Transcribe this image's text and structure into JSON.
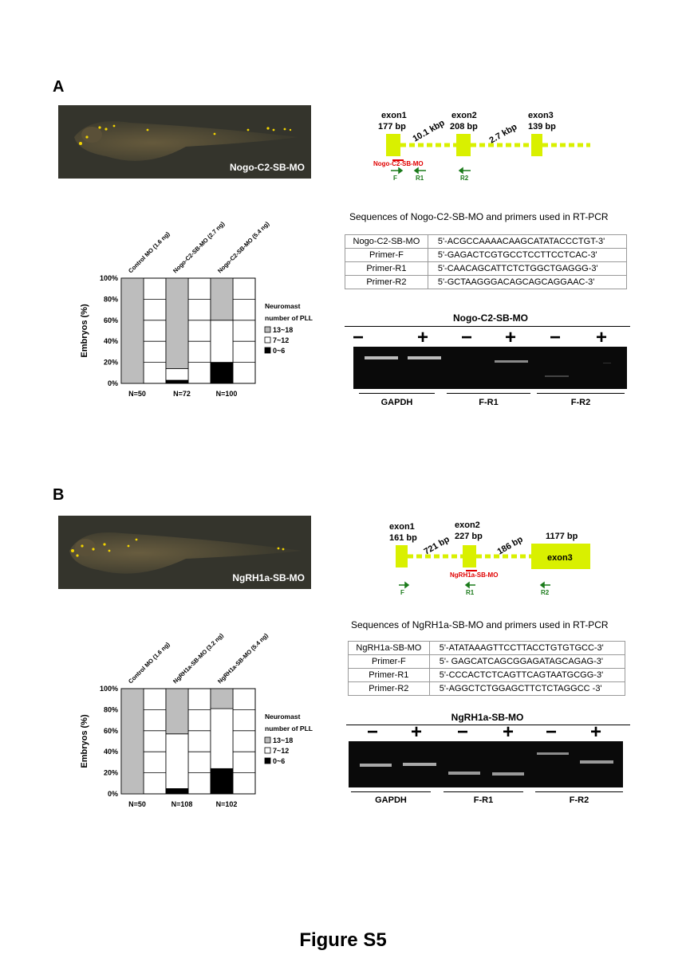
{
  "figure_title": "Figure S5",
  "panels": [
    {
      "letter": "A",
      "fish_label": "Nogo-C2-SB-MO",
      "gene": {
        "exon1": "exon1",
        "exon1_size": "177 bp",
        "exon2": "exon2",
        "exon2_size": "208 bp",
        "exon3": "exon3",
        "exon3_size": "139 bp",
        "intron1": "10.1 kbp",
        "intron2": "2.7 kbp",
        "mo": "Nogo-C2-SB-MO",
        "primer_f": "F",
        "primer_r1": "R1",
        "primer_r2": "R2"
      },
      "seq_title": "Sequences of Nogo-C2-SB-MO and primers used in RT-PCR",
      "seq_rows": [
        {
          "name": "Nogo-C2-SB-MO",
          "seq": "5'-ACGCCAAAACAAGCATATACCCTGT-3'"
        },
        {
          "name": "Primer-F",
          "seq": "5'-GAGACTCGTGCCTCCTTCCTCAC-3'"
        },
        {
          "name": "Primer-R1",
          "seq": "5'-CAACAGCATTCTCTGGCTGAGGG-3'"
        },
        {
          "name": "Primer-R2",
          "seq": "5'-GCTAAGGGACAGCAGCAGGAAC-3'"
        }
      ],
      "gel": {
        "title": "Nogo-C2-SB-MO",
        "signs": [
          "−",
          "+",
          "−",
          "+",
          "−",
          "+"
        ],
        "groups": [
          "GAPDH",
          "F-R1",
          "F-R2"
        ]
      }
    },
    {
      "letter": "B",
      "fish_label": "NgRH1a-SB-MO",
      "gene": {
        "exon1": "exon1",
        "exon1_size": "161 bp",
        "exon2": "exon2",
        "exon2_size": "227 bp",
        "exon3": "exon3",
        "exon3_size": "1177 bp",
        "intron1": "721 bp",
        "intron2": "186 bp",
        "mo": "NgRH1a-SB-MO",
        "primer_f": "F",
        "primer_r1": "R1",
        "primer_r2": "R2"
      },
      "seq_title": "Sequences of NgRH1a-SB-MO and primers used in RT-PCR",
      "seq_rows": [
        {
          "name": "NgRH1a-SB-MO",
          "seq": "5'-ATATAAAGTTCCTTACCTGTGTGCC-3'"
        },
        {
          "name": "Primer-F",
          "seq": "5'- GAGCATCAGCGGAGATAGCAGAG-3'"
        },
        {
          "name": "Primer-R1",
          "seq": "5'-CCCACTCTCAGTTCAGTAATGCGG-3'"
        },
        {
          "name": "Primer-R2",
          "seq": "5'-AGGCTCTGGAGCTTCTCTAGGCC -3'"
        }
      ],
      "gel": {
        "title": "NgRH1a-SB-MO",
        "signs": [
          "−",
          "+",
          "−",
          "+",
          "−",
          "+"
        ],
        "groups": [
          "GAPDH",
          "F-R1",
          "F-R2"
        ]
      }
    }
  ],
  "chart_data": [
    {
      "type": "bar",
      "stacked": true,
      "ylabel": "Embryos (%)",
      "ylim": [
        0,
        100
      ],
      "yticks": [
        "0%",
        "20%",
        "40%",
        "60%",
        "80%",
        "100%"
      ],
      "categories": [
        "Control MO (1.6 ng)",
        "Nogo-C2-SB-MO (2.7 ng)",
        "Nogo-C2-SB-MO (5.4 ng)"
      ],
      "n_labels": [
        "N=50",
        "N=72",
        "N=100"
      ],
      "legend_title": [
        "Neuromast",
        "number of PLL"
      ],
      "series": [
        {
          "name": "0~6",
          "color": "#000000",
          "values": [
            0,
            3,
            20
          ]
        },
        {
          "name": "7~12",
          "color": "#ffffff",
          "values": [
            0,
            11,
            40
          ]
        },
        {
          "name": "13~18",
          "color": "#bdbdbd",
          "values": [
            100,
            86,
            40
          ]
        }
      ],
      "grid": true,
      "legend_position": "right"
    },
    {
      "type": "bar",
      "stacked": true,
      "ylabel": "Embryos (%)",
      "ylim": [
        0,
        100
      ],
      "yticks": [
        "0%",
        "20%",
        "40%",
        "60%",
        "80%",
        "100%"
      ],
      "categories": [
        "Control MO (1.6 ng)",
        "NgRH1a-SB-MO (3.2 ng)",
        "NgRH1a-SB-MO (5.4 ng)"
      ],
      "n_labels": [
        "N=50",
        "N=108",
        "N=102"
      ],
      "legend_title": [
        "Neuromast",
        "number of PLL"
      ],
      "series": [
        {
          "name": "0~6",
          "color": "#000000",
          "values": [
            0,
            5,
            24
          ]
        },
        {
          "name": "7~12",
          "color": "#ffffff",
          "values": [
            0,
            52,
            57
          ]
        },
        {
          "name": "13~18",
          "color": "#bdbdbd",
          "values": [
            100,
            43,
            19
          ]
        }
      ],
      "grid": true,
      "legend_position": "right"
    }
  ]
}
